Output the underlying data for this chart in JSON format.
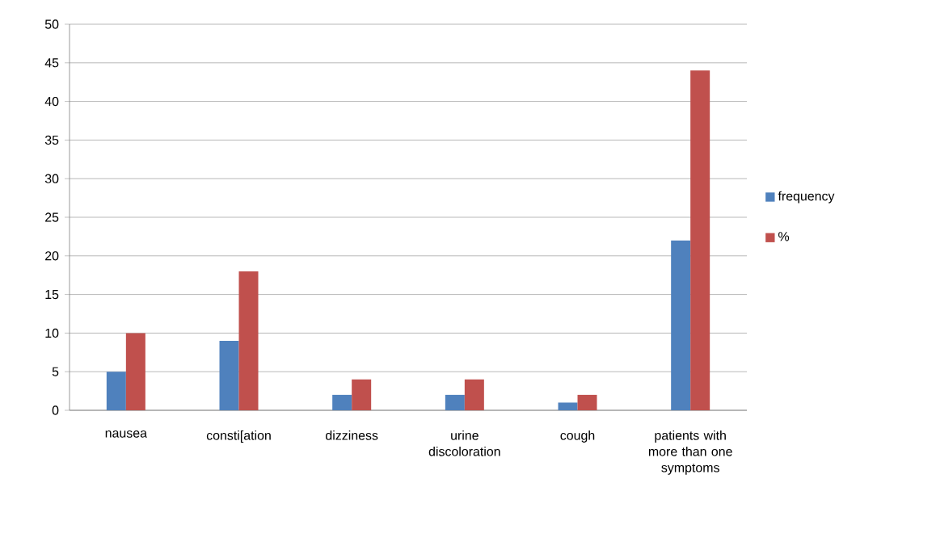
{
  "chart_data": {
    "type": "bar",
    "categories": [
      "nausea",
      "consti[ation",
      "dizziness",
      "urine discoloration",
      "cough",
      "patients with more than one symptoms"
    ],
    "series": [
      {
        "name": "frequency",
        "color": "#4f81bd",
        "values": [
          5,
          9,
          2,
          2,
          1,
          22
        ]
      },
      {
        "name": "%",
        "color": "#c0504d",
        "values": [
          10,
          18,
          4,
          4,
          2,
          44
        ]
      }
    ],
    "ylim": [
      0,
      50
    ],
    "yticks": [
      0,
      5,
      10,
      15,
      20,
      25,
      30,
      35,
      40,
      45,
      50
    ],
    "grid": "y",
    "legend": "right"
  }
}
